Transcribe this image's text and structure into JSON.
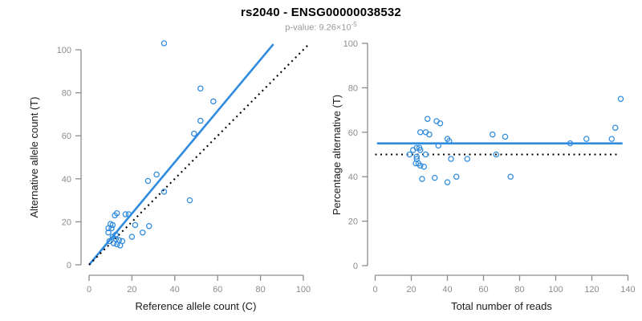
{
  "header": {
    "title": "rs2040 - ENSG00000038532",
    "subtitle_prefix": "p-value: 9.26×10",
    "subtitle_exponent": "-5"
  },
  "colors": {
    "accent_blue": "#2E8BDF",
    "line_black": "#000000",
    "axis_gray": "#8C8C8C",
    "tick_label_gray": "#8C8C8C",
    "subtitle_gray": "#999999"
  },
  "chart_data": [
    {
      "id": "allele-count-scatter",
      "type": "scatter",
      "xlabel": "Reference allele count (C)",
      "ylabel": "Alternative allele count (T)",
      "xlim": [
        0,
        100
      ],
      "ylim": [
        0,
        100
      ],
      "xticks": [
        0,
        20,
        40,
        60,
        80,
        100
      ],
      "yticks": [
        0,
        20,
        40,
        60,
        80,
        100
      ],
      "grid": false,
      "points": [
        [
          35,
          103
        ],
        [
          52,
          82
        ],
        [
          58,
          76
        ],
        [
          52,
          67
        ],
        [
          49,
          61
        ],
        [
          31.5,
          42
        ],
        [
          27.5,
          39
        ],
        [
          35,
          34
        ],
        [
          47,
          30
        ],
        [
          13,
          24
        ],
        [
          12,
          23
        ],
        [
          17,
          23.5
        ],
        [
          18.5,
          23.5
        ],
        [
          10,
          19
        ],
        [
          11,
          18.5
        ],
        [
          21.5,
          18.5
        ],
        [
          28,
          18
        ],
        [
          9,
          17
        ],
        [
          10.5,
          17
        ],
        [
          9,
          15
        ],
        [
          25,
          15
        ],
        [
          12.5,
          14
        ],
        [
          20,
          13
        ],
        [
          11,
          13
        ],
        [
          12.5,
          12
        ],
        [
          14,
          11.5
        ],
        [
          15.5,
          11
        ],
        [
          9.5,
          11
        ],
        [
          11.5,
          10
        ],
        [
          13,
          9.5
        ],
        [
          14.5,
          9
        ]
      ],
      "lines": [
        {
          "name": "regression-line",
          "style": "solid",
          "color_key": "accent_blue",
          "from": [
            0,
            0
          ],
          "to": [
            86,
            102.6
          ]
        },
        {
          "name": "identity-line",
          "style": "dotted",
          "color_key": "line_black",
          "from": [
            0,
            0
          ],
          "to": [
            103,
            103
          ]
        }
      ]
    },
    {
      "id": "percentage-scatter",
      "type": "scatter",
      "xlabel": "Total number of reads",
      "ylabel": "Percentage alternative (T)",
      "xlim": [
        0,
        140
      ],
      "ylim": [
        0,
        100
      ],
      "xticks": [
        0,
        20,
        40,
        60,
        80,
        100,
        120,
        140
      ],
      "yticks": [
        0,
        20,
        40,
        60,
        80,
        100
      ],
      "grid": false,
      "points": [
        [
          29,
          66
        ],
        [
          34,
          65
        ],
        [
          36,
          64
        ],
        [
          25,
          60
        ],
        [
          28,
          60
        ],
        [
          30,
          59
        ],
        [
          40,
          57
        ],
        [
          41,
          56
        ],
        [
          35,
          54
        ],
        [
          21,
          52
        ],
        [
          23,
          53
        ],
        [
          24.5,
          53
        ],
        [
          25,
          52
        ],
        [
          19,
          50
        ],
        [
          23,
          49
        ],
        [
          28,
          50
        ],
        [
          23,
          48
        ],
        [
          42,
          48
        ],
        [
          51,
          48
        ],
        [
          24,
          46
        ],
        [
          22.5,
          46
        ],
        [
          25,
          45
        ],
        [
          27,
          44.5
        ],
        [
          26,
          39
        ],
        [
          33,
          39.5
        ],
        [
          40,
          37.5
        ],
        [
          45,
          40
        ],
        [
          65,
          59
        ],
        [
          72,
          58
        ],
        [
          67,
          50
        ],
        [
          75,
          40
        ],
        [
          108,
          55
        ],
        [
          117,
          57
        ],
        [
          131,
          57
        ],
        [
          133,
          62
        ],
        [
          136,
          75
        ]
      ],
      "lines": [
        {
          "name": "mean-percentage-line",
          "style": "solid",
          "color_key": "accent_blue",
          "from": [
            1,
            55
          ],
          "to": [
            137,
            55
          ]
        },
        {
          "name": "fifty-percent-line",
          "style": "dotted",
          "color_key": "line_black",
          "from": [
            0,
            50
          ],
          "to": [
            134,
            50
          ]
        }
      ]
    }
  ]
}
